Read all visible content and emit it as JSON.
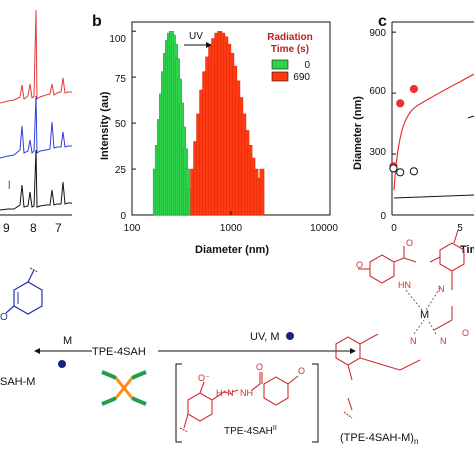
{
  "panel_a": {
    "ticks": [
      "9",
      "8",
      "7"
    ]
  },
  "panel_b": {
    "letter": "b",
    "ylabel": "Intensity (au)",
    "xlabel": "Diameter (nm)",
    "yticks": [
      "0",
      "25",
      "50",
      "75",
      "100"
    ],
    "xticks": [
      "100",
      "1000",
      "10000"
    ],
    "arrow_label": "UV",
    "legend_title_line1": "Radiation",
    "legend_title_line2": "Time (s)",
    "legend": [
      {
        "label": "0",
        "color": "#2fd24a"
      },
      {
        "label": "690",
        "color": "#ff3a10"
      }
    ]
  },
  "panel_c": {
    "letter": "c",
    "ylabel": "Diameter (nm)",
    "yticks": [
      "0",
      "300",
      "600",
      "900"
    ],
    "xticks": [
      "0",
      "5"
    ],
    "xlabel_partial": "Tim"
  },
  "scheme": {
    "center_label": "TPE-4SAH",
    "left_reagent": "M",
    "left_product": "SAH-M",
    "right_reagent": "UV, M",
    "intermediate_label": "TPE-4SAH",
    "intermediate_sup": "II",
    "right_product": "(TPE-4SAH-M)",
    "right_product_sub": "n",
    "metal": "M",
    "hn": "HN",
    "h_n": "H⁺N",
    "nh": "NH",
    "n": "N",
    "o": "O",
    "ominus": "O⁻"
  },
  "chart_data": [
    {
      "type": "line",
      "title": "",
      "note": "panel a, cropped spectra",
      "xticks": [
        "9",
        "8",
        "7"
      ],
      "series": [
        {
          "name": "",
          "color": "#e23b3b"
        },
        {
          "name": "",
          "color": "#2e3fd6"
        },
        {
          "name": "",
          "color": "#111111"
        }
      ]
    },
    {
      "type": "bar",
      "xscale": "log",
      "xlim": [
        100,
        10000
      ],
      "ylim": [
        0,
        105
      ],
      "xlabel": "Diameter (nm)",
      "ylabel": "Intensity (au)",
      "legend_position": "top-right",
      "series": [
        {
          "name": "0",
          "color": "#2fd24a",
          "x": [
            172,
            180,
            189,
            198,
            208,
            218,
            228,
            239,
            250,
            262,
            275,
            288,
            302,
            317,
            332,
            348,
            365,
            382
          ],
          "values": [
            25,
            38,
            52,
            66,
            78,
            88,
            95,
            99,
            100,
            98,
            93,
            85,
            74,
            61,
            48,
            36,
            25,
            14
          ]
        },
        {
          "name": "690",
          "color": "#ff3a10",
          "x": [
            410,
            440,
            472,
            506,
            543,
            582,
            624,
            669,
            718,
            770,
            826,
            886,
            950,
            1019,
            1093,
            1172,
            1257,
            1348,
            1446,
            1551,
            1664,
            1785,
            1915,
            2054
          ],
          "values": [
            25,
            40,
            55,
            68,
            78,
            86,
            92,
            96,
            99,
            100,
            99,
            97,
            93,
            88,
            81,
            73,
            64,
            55,
            46,
            38,
            31,
            25,
            20,
            25
          ]
        }
      ]
    },
    {
      "type": "line",
      "xlim": [
        0,
        6
      ],
      "ylim": [
        0,
        950
      ],
      "ylabel": "Diameter (nm)",
      "series": [
        {
          "name": "",
          "color": "#ee3030",
          "marker": "filled-circle",
          "x": [
            0.1,
            0.6,
            1.6
          ],
          "y": [
            240,
            550,
            620
          ]
        },
        {
          "name": "",
          "color": "#111111",
          "marker": "open-circle",
          "x": [
            0.1,
            0.6,
            1.6
          ],
          "y": [
            230,
            210,
            215
          ]
        }
      ]
    }
  ]
}
